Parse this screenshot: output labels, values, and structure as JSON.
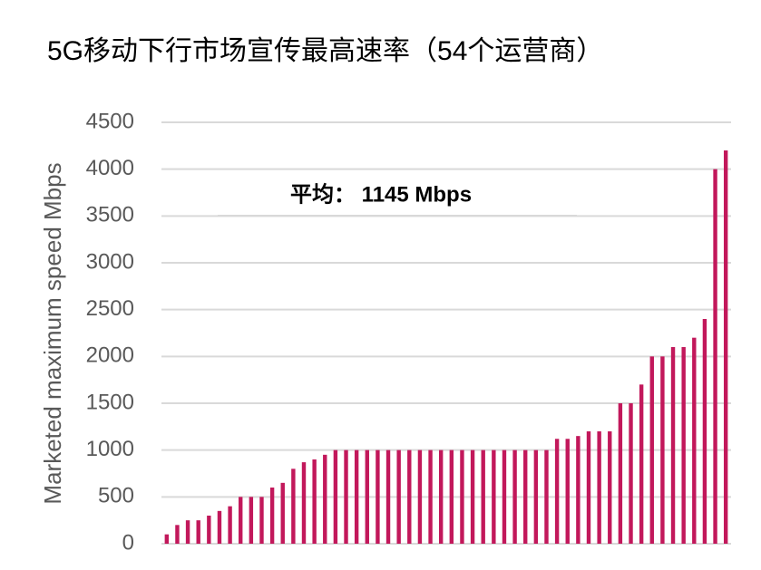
{
  "chart_data": {
    "type": "bar",
    "title": "5G移动下行市场宣传最高速率（54个运营商）",
    "y_label": "Marketed maximum speed Mbps",
    "annotation": "平均： 1145 Mbps",
    "values": [
      100,
      200,
      250,
      250,
      300,
      350,
      400,
      500,
      500,
      500,
      600,
      650,
      800,
      870,
      900,
      950,
      1000,
      1000,
      1000,
      1000,
      1000,
      1000,
      1000,
      1000,
      1000,
      1000,
      1000,
      1000,
      1000,
      1000,
      1000,
      1000,
      1000,
      1000,
      1000,
      1000,
      1000,
      1120,
      1120,
      1150,
      1200,
      1200,
      1200,
      1500,
      1500,
      1700,
      2000,
      2000,
      2100,
      2100,
      2200,
      2400,
      4000,
      4200
    ],
    "color": "#c2185b",
    "ylim": [
      0,
      4500
    ],
    "yticks": [
      0,
      500,
      1000,
      1500,
      2000,
      2500,
      3000,
      3500,
      4000,
      4500
    ],
    "grid": true
  }
}
